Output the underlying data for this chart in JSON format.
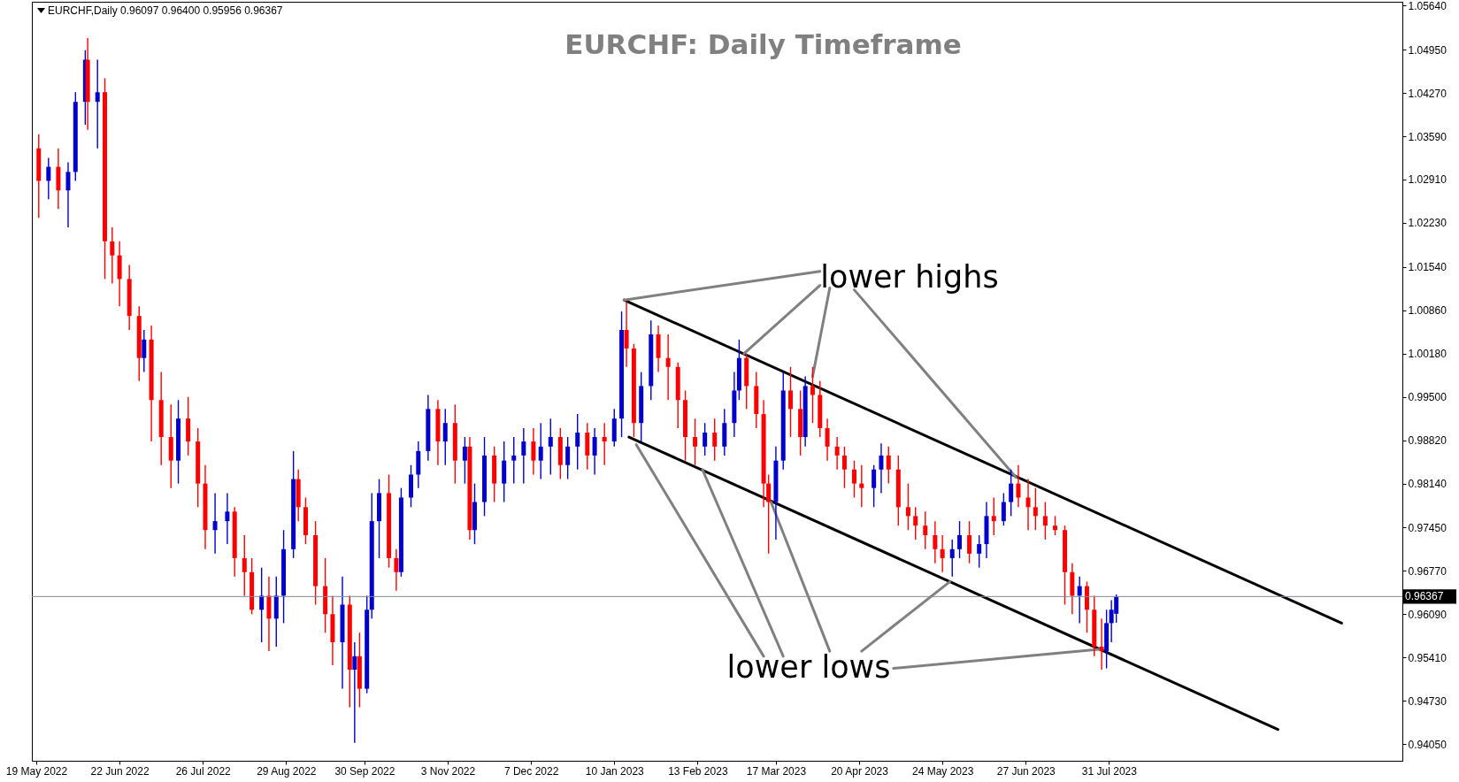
{
  "chart_data": {
    "type": "candlestick",
    "title": "EURCHF: Daily Timeframe",
    "annotations": [
      "EURCHF,Daily  0.96097 0.96400 0.95956 0.96367",
      "lower highs",
      "lower lows"
    ],
    "x": [
      "2022-05-20",
      "2022-05-24",
      "2022-05-28",
      "2022-06-01",
      "2022-06-04",
      "2022-06-08",
      "2022-06-09",
      "2022-06-13",
      "2022-06-16",
      "2022-06-19",
      "2022-06-22",
      "2022-06-26",
      "2022-06-30",
      "2022-07-02",
      "2022-07-05",
      "2022-07-09",
      "2022-07-13",
      "2022-07-16",
      "2022-07-20",
      "2022-07-24",
      "2022-07-27",
      "2022-07-31",
      "2022-08-05",
      "2022-08-08",
      "2022-08-12",
      "2022-08-15",
      "2022-08-19",
      "2022-08-22",
      "2022-08-25",
      "2022-08-28",
      "2022-09-01",
      "2022-09-03",
      "2022-09-06",
      "2022-09-10",
      "2022-09-14",
      "2022-09-17",
      "2022-09-21",
      "2022-09-24",
      "2022-09-26",
      "2022-09-28",
      "2022-10-01",
      "2022-10-03",
      "2022-10-06",
      "2022-10-10",
      "2022-10-13",
      "2022-10-15",
      "2022-10-19",
      "2022-10-22",
      "2022-10-26",
      "2022-10-30",
      "2022-11-02",
      "2022-11-06",
      "2022-11-10",
      "2022-11-12",
      "2022-11-14",
      "2022-11-18",
      "2022-11-22",
      "2022-11-26",
      "2022-11-30",
      "2022-12-04",
      "2022-12-08",
      "2022-12-11",
      "2022-12-15",
      "2022-12-19",
      "2022-12-22",
      "2022-12-26",
      "2022-12-30",
      "2023-01-02",
      "2023-01-06",
      "2023-01-10",
      "2023-01-13",
      "2023-01-15",
      "2023-01-18",
      "2023-01-21",
      "2023-01-25",
      "2023-01-28",
      "2023-02-01",
      "2023-02-05",
      "2023-02-08",
      "2023-02-12",
      "2023-02-16",
      "2023-02-20",
      "2023-02-24",
      "2023-02-28",
      "2023-03-02",
      "2023-03-05",
      "2023-03-09",
      "2023-03-12",
      "2023-03-14",
      "2023-03-17",
      "2023-03-20",
      "2023-03-23",
      "2023-03-27",
      "2023-03-29",
      "2023-04-01",
      "2023-04-04",
      "2023-04-07",
      "2023-04-11",
      "2023-04-14",
      "2023-04-18",
      "2023-04-21",
      "2023-04-26",
      "2023-04-29",
      "2023-05-02",
      "2023-05-06",
      "2023-05-10",
      "2023-05-13",
      "2023-05-17",
      "2023-05-21",
      "2023-05-24",
      "2023-05-28",
      "2023-05-31",
      "2023-06-04",
      "2023-06-08",
      "2023-06-11",
      "2023-06-14",
      "2023-06-18",
      "2023-06-21",
      "2023-06-24",
      "2023-06-28",
      "2023-07-01",
      "2023-07-05",
      "2023-07-09",
      "2023-07-13",
      "2023-07-16",
      "2023-07-19",
      "2023-07-22",
      "2023-07-25",
      "2023-07-28",
      "2023-07-30",
      "2023-08-01",
      "2023-08-03"
    ],
    "ohlc": [
      [
        1.034,
        1.0362,
        1.0231,
        1.0289
      ],
      [
        1.0289,
        1.0325,
        1.026,
        1.0311
      ],
      [
        1.0311,
        1.034,
        1.0245,
        1.0274
      ],
      [
        1.0274,
        1.0318,
        1.0216,
        1.0303
      ],
      [
        1.0303,
        1.0428,
        1.0289,
        1.0413
      ],
      [
        1.0413,
        1.0494,
        1.0377,
        1.0479
      ],
      [
        1.0479,
        1.0513,
        1.0369,
        1.0413
      ],
      [
        1.0413,
        1.0479,
        1.034,
        1.0428
      ],
      [
        1.0428,
        1.045,
        1.0135,
        1.0194
      ],
      [
        1.0194,
        1.0216,
        1.0128,
        1.0172
      ],
      [
        1.0172,
        1.0194,
        1.0092,
        1.0135
      ],
      [
        1.0135,
        1.0157,
        1.0055,
        1.0077
      ],
      [
        1.0077,
        1.0092,
        0.9975,
        1.0011
      ],
      [
        1.0011,
        1.0055,
        0.9989,
        1.004
      ],
      [
        1.004,
        1.0062,
        0.988,
        0.9945
      ],
      [
        0.9945,
        0.9989,
        0.9843,
        0.9887
      ],
      [
        0.9887,
        0.9938,
        0.9807,
        0.985
      ],
      [
        0.985,
        0.9945,
        0.9814,
        0.9916
      ],
      [
        0.9916,
        0.995,
        0.9858,
        0.988
      ],
      [
        0.988,
        0.9901,
        0.9777,
        0.9814
      ],
      [
        0.9814,
        0.9843,
        0.9711,
        0.9741
      ],
      [
        0.9741,
        0.9799,
        0.9704,
        0.9755
      ],
      [
        0.9755,
        0.9799,
        0.9719,
        0.977
      ],
      [
        0.977,
        0.9777,
        0.9668,
        0.9697
      ],
      [
        0.9697,
        0.9733,
        0.9638,
        0.9675
      ],
      [
        0.9675,
        0.9697,
        0.9609,
        0.9616
      ],
      [
        0.9616,
        0.9682,
        0.9565,
        0.9638
      ],
      [
        0.9638,
        0.9668,
        0.9551,
        0.9602
      ],
      [
        0.9602,
        0.9668,
        0.9558,
        0.9638
      ],
      [
        0.9638,
        0.9741,
        0.9595,
        0.9711
      ],
      [
        0.9711,
        0.9865,
        0.9697,
        0.9821
      ],
      [
        0.9821,
        0.9836,
        0.9755,
        0.9777
      ],
      [
        0.9777,
        0.9792,
        0.9719,
        0.9733
      ],
      [
        0.9733,
        0.9755,
        0.9624,
        0.9653
      ],
      [
        0.9653,
        0.9697,
        0.958,
        0.9609
      ],
      [
        0.9609,
        0.9638,
        0.9529,
        0.9565
      ],
      [
        0.9565,
        0.9668,
        0.9492,
        0.9624
      ],
      [
        0.9624,
        0.9638,
        0.9463,
        0.9522
      ],
      [
        0.9522,
        0.9565,
        0.9407,
        0.9543
      ],
      [
        0.9543,
        0.958,
        0.9463,
        0.9492
      ],
      [
        0.9492,
        0.9638,
        0.9485,
        0.9616
      ],
      [
        0.9616,
        0.9799,
        0.9602,
        0.9755
      ],
      [
        0.9755,
        0.9821,
        0.9697,
        0.9799
      ],
      [
        0.9799,
        0.9828,
        0.9682,
        0.9697
      ],
      [
        0.9697,
        0.9711,
        0.9646,
        0.9675
      ],
      [
        0.9675,
        0.9807,
        0.9668,
        0.9792
      ],
      [
        0.9792,
        0.9843,
        0.9777,
        0.9828
      ],
      [
        0.9828,
        0.988,
        0.9807,
        0.9865
      ],
      [
        0.9865,
        0.9953,
        0.985,
        0.9931
      ],
      [
        0.9931,
        0.9945,
        0.9843,
        0.988
      ],
      [
        0.988,
        0.9931,
        0.9843,
        0.9909
      ],
      [
        0.9909,
        0.9938,
        0.9814,
        0.985
      ],
      [
        0.985,
        0.9887,
        0.9814,
        0.9872
      ],
      [
        0.9872,
        0.9887,
        0.9726,
        0.9741
      ],
      [
        0.9741,
        0.9814,
        0.9719,
        0.9785
      ],
      [
        0.9785,
        0.9887,
        0.9763,
        0.9858
      ],
      [
        0.9858,
        0.9872,
        0.9785,
        0.9814
      ],
      [
        0.9814,
        0.988,
        0.9785,
        0.985
      ],
      [
        0.985,
        0.9887,
        0.9814,
        0.9858
      ],
      [
        0.9858,
        0.9901,
        0.9814,
        0.988
      ],
      [
        0.988,
        0.9901,
        0.9828,
        0.985
      ],
      [
        0.985,
        0.9909,
        0.9821,
        0.9872
      ],
      [
        0.9872,
        0.9916,
        0.9828,
        0.9887
      ],
      [
        0.9887,
        0.9901,
        0.9821,
        0.9843
      ],
      [
        0.9843,
        0.9887,
        0.9821,
        0.9872
      ],
      [
        0.9872,
        0.9923,
        0.9836,
        0.9894
      ],
      [
        0.9894,
        0.9909,
        0.9836,
        0.9858
      ],
      [
        0.9858,
        0.9901,
        0.9828,
        0.9887
      ],
      [
        0.9887,
        0.9909,
        0.9843,
        0.988
      ],
      [
        0.988,
        0.9931,
        0.9872,
        0.9916
      ],
      [
        0.9916,
        1.0084,
        0.9887,
        1.0055
      ],
      [
        1.0055,
        1.0099,
        0.9997,
        1.0026
      ],
      [
        1.0026,
        1.0033,
        0.9887,
        0.9909
      ],
      [
        0.9909,
        0.9989,
        0.988,
        0.9967
      ],
      [
        0.9967,
        1.007,
        0.9945,
        1.0048
      ],
      [
        1.0048,
        1.0062,
        0.9989,
        1.0011
      ],
      [
        1.0011,
        1.0048,
        0.9945,
        0.9997
      ],
      [
        0.9997,
        1.0004,
        0.9901,
        0.9945
      ],
      [
        0.9945,
        0.996,
        0.985,
        0.9887
      ],
      [
        0.9887,
        0.9916,
        0.9843,
        0.9872
      ],
      [
        0.9872,
        0.9909,
        0.9858,
        0.9894
      ],
      [
        0.9894,
        0.9916,
        0.985,
        0.9872
      ],
      [
        0.9872,
        0.9931,
        0.9858,
        0.9909
      ],
      [
        0.9909,
        0.9989,
        0.9887,
        0.996
      ],
      [
        0.996,
        1.004,
        0.9945,
        1.0011
      ],
      [
        1.0011,
        1.0018,
        0.9931,
        0.9967
      ],
      [
        0.9967,
        0.9989,
        0.9901,
        0.9923
      ],
      [
        0.9923,
        0.9945,
        0.9777,
        0.9814
      ],
      [
        0.9814,
        0.9828,
        0.9704,
        0.9785
      ],
      [
        0.9785,
        0.9872,
        0.9726,
        0.985
      ],
      [
        0.985,
        0.9989,
        0.9836,
        0.996
      ],
      [
        0.996,
        0.9997,
        0.9887,
        0.9931
      ],
      [
        0.9931,
        0.996,
        0.9858,
        0.9887
      ],
      [
        0.9887,
        0.9982,
        0.9872,
        0.9967
      ],
      [
        0.9967,
        0.9997,
        0.9909,
        0.9953
      ],
      [
        0.9953,
        0.9975,
        0.9887,
        0.9901
      ],
      [
        0.9901,
        0.9916,
        0.985,
        0.9872
      ],
      [
        0.9872,
        0.9887,
        0.9836,
        0.9858
      ],
      [
        0.9858,
        0.9872,
        0.9807,
        0.9836
      ],
      [
        0.9836,
        0.985,
        0.9792,
        0.9814
      ],
      [
        0.9814,
        0.9843,
        0.9777,
        0.9807
      ],
      [
        0.9807,
        0.9843,
        0.9777,
        0.9836
      ],
      [
        0.9836,
        0.9877,
        0.9799,
        0.9858
      ],
      [
        0.9858,
        0.9872,
        0.9814,
        0.9836
      ],
      [
        0.9836,
        0.9858,
        0.9748,
        0.9777
      ],
      [
        0.9777,
        0.9814,
        0.9741,
        0.9763
      ],
      [
        0.9763,
        0.9777,
        0.9726,
        0.9748
      ],
      [
        0.9748,
        0.977,
        0.9711,
        0.9733
      ],
      [
        0.9733,
        0.9755,
        0.9689,
        0.9711
      ],
      [
        0.9711,
        0.9733,
        0.9675,
        0.9697
      ],
      [
        0.9697,
        0.9726,
        0.9668,
        0.9711
      ],
      [
        0.9711,
        0.9755,
        0.9697,
        0.9733
      ],
      [
        0.9733,
        0.9755,
        0.9689,
        0.9704
      ],
      [
        0.9704,
        0.9733,
        0.9682,
        0.9719
      ],
      [
        0.9719,
        0.9785,
        0.9697,
        0.9763
      ],
      [
        0.9763,
        0.9792,
        0.9733,
        0.9755
      ],
      [
        0.9755,
        0.9799,
        0.9748,
        0.9785
      ],
      [
        0.9785,
        0.9836,
        0.9763,
        0.9814
      ],
      [
        0.9814,
        0.9843,
        0.9777,
        0.9792
      ],
      [
        0.9792,
        0.9821,
        0.9741,
        0.9777
      ],
      [
        0.9777,
        0.9807,
        0.9741,
        0.9763
      ],
      [
        0.9763,
        0.9785,
        0.9726,
        0.9748
      ],
      [
        0.9748,
        0.9763,
        0.9733,
        0.9741
      ],
      [
        0.9741,
        0.9748,
        0.9624,
        0.9675
      ],
      [
        0.9675,
        0.9689,
        0.9609,
        0.9638
      ],
      [
        0.9638,
        0.9668,
        0.9595,
        0.9653
      ],
      [
        0.9653,
        0.966,
        0.958,
        0.9616
      ],
      [
        0.9616,
        0.9638,
        0.9543,
        0.9558
      ],
      [
        0.9558,
        0.9602,
        0.9522,
        0.9551
      ],
      [
        0.9551,
        0.9616,
        0.9524,
        0.9595
      ],
      [
        0.9595,
        0.9631,
        0.9565,
        0.9616
      ],
      [
        0.96097,
        0.964,
        0.95956,
        0.96367
      ]
    ],
    "colors": [
      "#ff0000",
      "#0000cd",
      "#ff0000",
      "#0000cd",
      "#0000cd",
      "#0000cd",
      "#ff0000",
      "#0000cd",
      "#ff0000",
      "#ff0000",
      "#ff0000",
      "#ff0000",
      "#ff0000",
      "#0000cd",
      "#ff0000",
      "#ff0000",
      "#ff0000",
      "#0000cd",
      "#ff0000",
      "#ff0000",
      "#ff0000",
      "#0000cd",
      "#0000cd",
      "#ff0000",
      "#ff0000",
      "#ff0000",
      "#0000cd",
      "#ff0000",
      "#0000cd",
      "#0000cd",
      "#0000cd",
      "#ff0000",
      "#ff0000",
      "#ff0000",
      "#ff0000",
      "#ff0000",
      "#0000cd",
      "#ff0000",
      "#0000cd",
      "#ff0000",
      "#0000cd",
      "#0000cd",
      "#0000cd",
      "#ff0000",
      "#ff0000",
      "#0000cd",
      "#0000cd",
      "#0000cd",
      "#0000cd",
      "#ff0000",
      "#0000cd",
      "#ff0000",
      "#0000cd",
      "#ff0000",
      "#0000cd",
      "#0000cd",
      "#ff0000",
      "#0000cd",
      "#0000cd",
      "#0000cd",
      "#ff0000",
      "#0000cd",
      "#0000cd",
      "#ff0000",
      "#0000cd",
      "#0000cd",
      "#ff0000",
      "#0000cd",
      "#ff0000",
      "#0000cd",
      "#0000cd",
      "#ff0000",
      "#ff0000",
      "#0000cd",
      "#0000cd",
      "#ff0000",
      "#ff0000",
      "#ff0000",
      "#ff0000",
      "#ff0000",
      "#0000cd",
      "#ff0000",
      "#0000cd",
      "#0000cd",
      "#0000cd",
      "#ff0000",
      "#ff0000",
      "#ff0000",
      "#ff0000",
      "#0000cd",
      "#0000cd",
      "#ff0000",
      "#ff0000",
      "#0000cd",
      "#ff0000",
      "#ff0000",
      "#ff0000",
      "#ff0000",
      "#ff0000",
      "#ff0000",
      "#ff0000",
      "#0000cd",
      "#0000cd",
      "#ff0000",
      "#ff0000",
      "#ff0000",
      "#ff0000",
      "#ff0000",
      "#ff0000",
      "#ff0000",
      "#0000cd",
      "#0000cd",
      "#ff0000",
      "#0000cd",
      "#0000cd",
      "#ff0000",
      "#0000cd",
      "#0000cd",
      "#ff0000",
      "#ff0000",
      "#ff0000",
      "#ff0000",
      "#ff0000",
      "#ff0000",
      "#ff0000",
      "#0000cd",
      "#ff0000",
      "#ff0000",
      "#ff0000",
      "#0000cd",
      "#0000cd",
      "#0000cd"
    ],
    "series": [
      {
        "type": "line",
        "color": "#000000",
        "x": [
          "2023-01-14",
          "2023-11-03"
        ],
        "values": [
          1.0102,
          0.9595
        ]
      },
      {
        "type": "line",
        "color": "#000000",
        "x": [
          "2023-01-16",
          "2023-10-08"
        ],
        "values": [
          0.9887,
          0.9428
        ]
      },
      {
        "type": "line",
        "color": "#808080",
        "x": [
          "2023-04-04",
          "2023-01-14"
        ],
        "values": [
          1.0147,
          1.0102
        ]
      },
      {
        "type": "line",
        "color": "#808080",
        "x": [
          "2023-04-04",
          "2023-03-04"
        ],
        "values": [
          1.0125,
          1.0018
        ]
      },
      {
        "type": "line",
        "color": "#808080",
        "x": [
          "2023-04-08",
          "2023-04-01"
        ],
        "values": [
          1.0121,
          0.9982
        ]
      },
      {
        "type": "line",
        "color": "#808080",
        "x": [
          "2023-04-18",
          "2023-06-23"
        ],
        "values": [
          1.0118,
          0.9824
        ]
      },
      {
        "type": "line",
        "color": "#808080",
        "x": [
          "2023-03-12",
          "2023-01-19"
        ],
        "values": [
          0.9543,
          0.9875
        ]
      },
      {
        "type": "line",
        "color": "#808080",
        "x": [
          "2023-03-20",
          "2023-02-15"
        ],
        "values": [
          0.9543,
          0.9836
        ]
      },
      {
        "type": "line",
        "color": "#808080",
        "x": [
          "2023-04-08",
          "2023-03-15"
        ],
        "values": [
          0.9551,
          0.9785
        ]
      },
      {
        "type": "line",
        "color": "#808080",
        "x": [
          "2023-04-21",
          "2023-05-27"
        ],
        "values": [
          0.9551,
          0.966
        ]
      },
      {
        "type": "line",
        "color": "#808080",
        "x": [
          "2023-05-04",
          "2023-07-27"
        ],
        "values": [
          0.9524,
          0.9554
        ]
      }
    ],
    "ref_lines": [
      {
        "axis": "y",
        "value": 0.96367,
        "label": "0.96367",
        "color": "#7f8c9a"
      }
    ],
    "xlim": [
      "2022-05-19",
      "2023-11-26"
    ],
    "xticks": [
      {
        "value": "2022-05-19",
        "label": "19 May 2022"
      },
      {
        "value": "2022-06-22",
        "label": "22 Jun 2022"
      },
      {
        "value": "2022-07-26",
        "label": "26 Jul 2022"
      },
      {
        "value": "2022-08-29",
        "label": "29 Aug 2022"
      },
      {
        "value": "2022-09-30",
        "label": "30 Sep 2022"
      },
      {
        "value": "2022-11-03",
        "label": "3 Nov 2022"
      },
      {
        "value": "2022-12-07",
        "label": "7 Dec 2022"
      },
      {
        "value": "2023-01-10",
        "label": "10 Jan 2023"
      },
      {
        "value": "2023-02-13",
        "label": "13 Feb 2023"
      },
      {
        "value": "2023-03-17",
        "label": "17 Mar 2023"
      },
      {
        "value": "2023-04-20",
        "label": "20 Apr 2023"
      },
      {
        "value": "2023-05-24",
        "label": "24 May 2023"
      },
      {
        "value": "2023-06-27",
        "label": "27 Jun 2023"
      },
      {
        "value": "2023-07-31",
        "label": "31 Jul 2023"
      }
    ],
    "ylim": [
      0.9379,
      1.057
    ],
    "yticks": [
      {
        "value": 0.9405,
        "label": "0.94050"
      },
      {
        "value": 0.9473,
        "label": "0.94730"
      },
      {
        "value": 0.9541,
        "label": "0.95410"
      },
      {
        "value": 0.9609,
        "label": "0.96090"
      },
      {
        "value": 0.9677,
        "label": "0.96770"
      },
      {
        "value": 0.9745,
        "label": "0.97450"
      },
      {
        "value": 0.9814,
        "label": "0.98140"
      },
      {
        "value": 0.9882,
        "label": "0.98820"
      },
      {
        "value": 0.995,
        "label": "0.99500"
      },
      {
        "value": 1.0018,
        "label": "1.00180"
      },
      {
        "value": 1.0086,
        "label": "1.00860"
      },
      {
        "value": 1.0154,
        "label": "1.01540"
      },
      {
        "value": 1.0223,
        "label": "1.02230"
      },
      {
        "value": 1.0291,
        "label": "1.02910"
      },
      {
        "value": 1.0359,
        "label": "1.03590"
      },
      {
        "value": 1.0427,
        "label": "1.04270"
      },
      {
        "value": 1.0495,
        "label": "1.04950"
      },
      {
        "value": 1.0564,
        "label": "1.05640"
      }
    ]
  }
}
